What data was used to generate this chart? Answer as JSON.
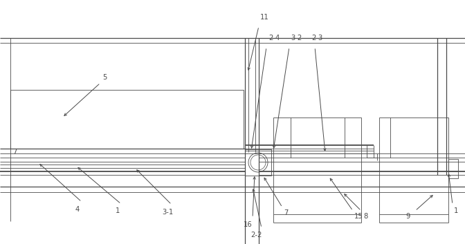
{
  "bg_color": "#ffffff",
  "lc": "#4a4a4a",
  "fig_width": 6.72,
  "fig_height": 3.53,
  "dpi": 100
}
